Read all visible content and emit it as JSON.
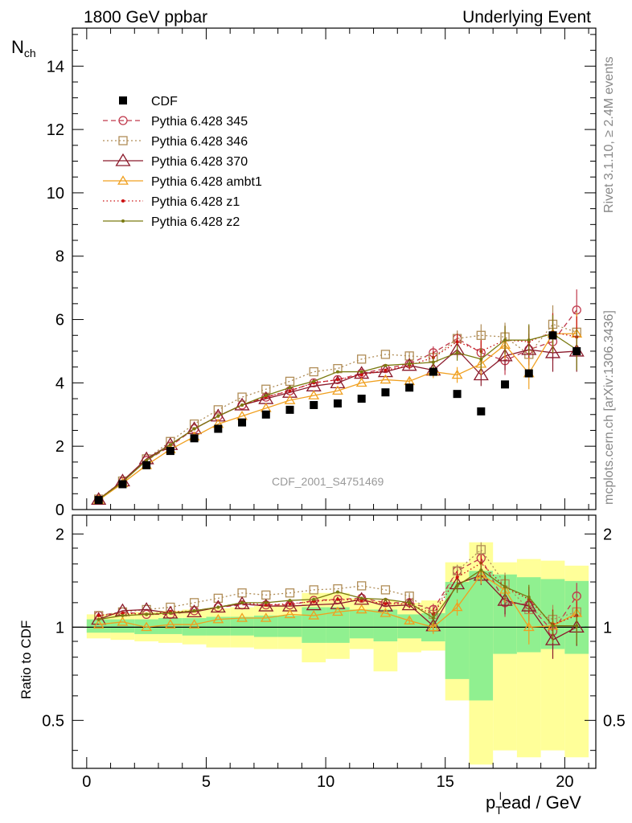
{
  "header": {
    "left_title": "1800 GeV ppbar",
    "right_title": "Underlying Event"
  },
  "side_labels": {
    "rivet": "Rivet 3.1.10, ≥ 2.4M events",
    "mcplots": "mcplots.cern.ch [arXiv:1306.3436]"
  },
  "watermark": "CDF_2001_S4751469",
  "colors": {
    "cdf": "#000000",
    "p345": "#c0394c",
    "p346": "#b08d57",
    "p370": "#8b1a2b",
    "ambt1": "#f0a020",
    "z1": "#cc1010",
    "z2": "#7a7a10",
    "band_inner": "#90f090",
    "band_outer": "#ffff99"
  },
  "chart_data": [
    {
      "type": "line",
      "ylabel_main": "N",
      "ylabel_sub": "ch",
      "xlabel_main": "p",
      "xlabel_sub": "T",
      "xlabel_sup": "l",
      "xlabel_rest": "ead / GeV",
      "xlim": [
        -0.6,
        21.3
      ],
      "ylim": [
        0,
        15.2
      ],
      "yticks": [
        0,
        2,
        4,
        6,
        8,
        10,
        12,
        14
      ],
      "x": [
        0.5,
        1.5,
        2.5,
        3.5,
        4.5,
        5.5,
        6.5,
        7.5,
        8.5,
        9.5,
        10.5,
        11.5,
        12.5,
        13.5,
        14.5,
        15.5,
        16.5,
        17.5,
        18.5,
        19.5,
        20.5
      ],
      "legend": [
        "CDF",
        "Pythia 6.428 345",
        "Pythia 6.428 346",
        "Pythia 6.428 370",
        "Pythia 6.428 ambt1",
        "Pythia 6.428 z1",
        "Pythia 6.428 z2"
      ],
      "series": [
        {
          "name": "CDF",
          "key": "cdf",
          "values": [
            0.3,
            0.8,
            1.4,
            1.85,
            2.25,
            2.55,
            2.75,
            3.0,
            3.15,
            3.3,
            3.35,
            3.5,
            3.7,
            3.85,
            4.35,
            3.65,
            3.1,
            3.95,
            4.3,
            5.5,
            5.0
          ]
        },
        {
          "name": "Pythia 6.428 345",
          "key": "p345",
          "values": [
            0.32,
            0.88,
            1.55,
            2.0,
            2.55,
            2.95,
            3.3,
            3.55,
            3.75,
            4.0,
            4.1,
            4.3,
            4.45,
            4.6,
            4.95,
            5.4,
            4.95,
            4.7,
            5.05,
            5.3,
            6.3
          ]
        },
        {
          "name": "Pythia 6.428 346",
          "key": "p346",
          "values": [
            0.33,
            0.9,
            1.6,
            2.15,
            2.7,
            3.15,
            3.55,
            3.8,
            4.05,
            4.35,
            4.45,
            4.75,
            4.9,
            4.85,
            4.8,
            5.4,
            5.5,
            5.45,
            4.9,
            5.85,
            5.6
          ]
        },
        {
          "name": "Pythia 6.428 370",
          "key": "p370",
          "values": [
            0.32,
            0.9,
            1.6,
            2.05,
            2.55,
            2.95,
            3.3,
            3.5,
            3.7,
            3.9,
            4.0,
            4.3,
            4.35,
            4.55,
            4.4,
            5.05,
            4.25,
            4.85,
            5.05,
            4.95,
            5.0
          ]
        },
        {
          "name": "Pythia 6.428 ambt1",
          "key": "ambt1",
          "values": [
            0.3,
            0.83,
            1.4,
            1.9,
            2.3,
            2.7,
            2.95,
            3.2,
            3.45,
            3.6,
            3.75,
            4.0,
            4.1,
            4.05,
            4.35,
            4.25,
            4.6,
            5.2,
            4.3,
            5.55,
            5.55
          ]
        },
        {
          "name": "Pythia 6.428 z1",
          "key": "z1",
          "values": [
            0.33,
            0.88,
            1.55,
            2.05,
            2.55,
            2.95,
            3.3,
            3.55,
            3.75,
            4.0,
            4.1,
            4.25,
            4.4,
            4.55,
            4.8,
            5.3,
            5.0,
            5.35,
            5.3,
            5.6,
            5.45
          ]
        },
        {
          "name": "Pythia 6.428 z2",
          "key": "z2",
          "values": [
            0.32,
            0.87,
            1.55,
            2.05,
            2.55,
            2.95,
            3.3,
            3.6,
            3.85,
            4.05,
            4.35,
            4.35,
            4.55,
            4.6,
            4.65,
            4.95,
            4.75,
            5.35,
            5.35,
            5.55,
            5.05
          ]
        }
      ],
      "errors": [
        0,
        0,
        0,
        0,
        0,
        0,
        0,
        0,
        0,
        0,
        0,
        0,
        0,
        0.12,
        0.2,
        0.25,
        0.35,
        0.45,
        0.5,
        0.6,
        0.65
      ]
    },
    {
      "type": "line",
      "ylabel": "Ratio to CDF",
      "xlim": [
        -0.6,
        21.3
      ],
      "ylim": [
        0.35,
        2.3
      ],
      "yticks": [
        0.5,
        1,
        2
      ],
      "xticks": [
        0,
        5,
        10,
        15,
        20
      ],
      "band_edges": [
        0,
        1,
        2,
        3,
        4,
        5,
        6,
        7,
        8,
        9,
        10,
        11,
        12,
        13,
        14,
        15,
        16,
        17,
        18,
        19,
        20,
        21
      ],
      "band_inner_hi": [
        1.06,
        1.06,
        1.06,
        1.07,
        1.07,
        1.08,
        1.08,
        1.09,
        1.09,
        1.16,
        1.16,
        1.14,
        1.14,
        1.1,
        1.11,
        1.4,
        1.52,
        1.48,
        1.45,
        1.43,
        1.41
      ],
      "band_inner_lo": [
        0.96,
        0.96,
        0.95,
        0.95,
        0.94,
        0.94,
        0.94,
        0.93,
        0.93,
        0.89,
        0.89,
        0.92,
        0.9,
        0.92,
        0.9,
        0.68,
        0.58,
        0.82,
        0.83,
        0.85,
        0.82
      ],
      "band_outer_hi": [
        1.1,
        1.11,
        1.12,
        1.13,
        1.14,
        1.15,
        1.16,
        1.17,
        1.18,
        1.29,
        1.29,
        1.24,
        1.22,
        1.2,
        1.22,
        1.62,
        1.88,
        1.62,
        1.66,
        1.64,
        1.58
      ],
      "band_outer_lo": [
        0.92,
        0.91,
        0.9,
        0.89,
        0.88,
        0.86,
        0.86,
        0.85,
        0.85,
        0.77,
        0.79,
        0.85,
        0.72,
        0.83,
        0.84,
        0.58,
        0.36,
        0.4,
        0.38,
        0.4,
        0.38
      ],
      "series": [
        {
          "name": "Pythia 6.428 345",
          "key": "p345",
          "values": [
            1.09,
            1.12,
            1.1,
            1.1,
            1.13,
            1.16,
            1.18,
            1.18,
            1.18,
            1.22,
            1.23,
            1.24,
            1.2,
            1.2,
            1.14,
            1.52,
            1.67,
            1.2,
            1.18,
            0.97,
            1.26
          ]
        },
        {
          "name": "Pythia 6.428 346",
          "key": "p346",
          "values": [
            1.09,
            1.12,
            1.14,
            1.16,
            1.2,
            1.24,
            1.29,
            1.27,
            1.29,
            1.32,
            1.33,
            1.36,
            1.32,
            1.26,
            1.1,
            1.52,
            1.78,
            1.38,
            1.14,
            1.06,
            1.12
          ]
        },
        {
          "name": "Pythia 6.428 370",
          "key": "p370",
          "values": [
            1.06,
            1.13,
            1.14,
            1.11,
            1.12,
            1.16,
            1.19,
            1.17,
            1.17,
            1.18,
            1.19,
            1.23,
            1.17,
            1.18,
            1.01,
            1.38,
            1.47,
            1.22,
            1.17,
            0.91,
            1.0
          ]
        },
        {
          "name": "Pythia 6.428 ambt1",
          "key": "ambt1",
          "values": [
            1.02,
            1.04,
            1.0,
            1.02,
            1.02,
            1.06,
            1.07,
            1.07,
            1.1,
            1.09,
            1.12,
            1.14,
            1.11,
            1.05,
            1.0,
            1.16,
            1.48,
            1.32,
            1.0,
            1.01,
            1.11
          ]
        },
        {
          "name": "Pythia 6.428 z1",
          "key": "z1",
          "values": [
            1.09,
            1.11,
            1.1,
            1.12,
            1.13,
            1.16,
            1.2,
            1.18,
            1.19,
            1.21,
            1.23,
            1.22,
            1.19,
            1.19,
            1.1,
            1.45,
            1.61,
            1.35,
            1.23,
            1.02,
            1.09
          ]
        },
        {
          "name": "Pythia 6.428 z2",
          "key": "z2",
          "values": [
            1.06,
            1.09,
            1.1,
            1.11,
            1.13,
            1.16,
            1.2,
            1.2,
            1.22,
            1.23,
            1.3,
            1.24,
            1.23,
            1.2,
            1.07,
            1.36,
            1.53,
            1.35,
            1.25,
            1.01,
            1.01
          ]
        }
      ],
      "errors": [
        0,
        0,
        0,
        0,
        0,
        0,
        0,
        0,
        0,
        0,
        0,
        0,
        0,
        0.03,
        0.05,
        0.07,
        0.1,
        0.12,
        0.12,
        0.12,
        0.13
      ]
    }
  ]
}
